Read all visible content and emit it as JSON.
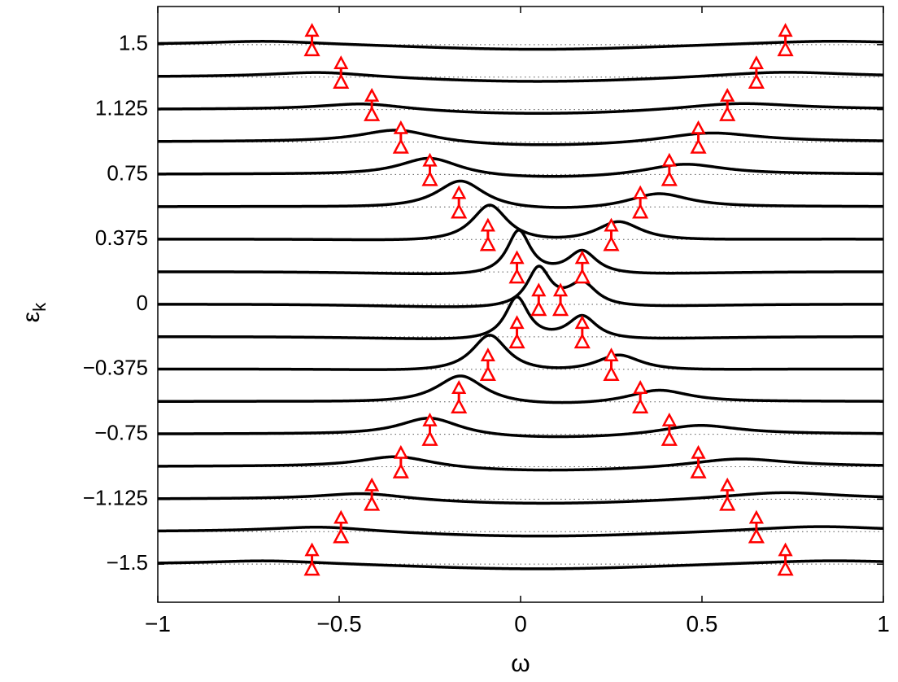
{
  "chart_data": {
    "type": "line",
    "xlabel": "ω",
    "ylabel": "ε",
    "ylabel_subscript": "k",
    "xlim": [
      -1,
      1
    ],
    "ylim": [
      -1.72,
      1.72
    ],
    "x_ticks": [
      -1,
      -0.5,
      0,
      0.5,
      1
    ],
    "x_tick_labels": [
      "−1",
      "−0.5",
      "0",
      "0.5",
      "1"
    ],
    "y_ticks": [
      -1.5,
      -1.125,
      -0.75,
      -0.375,
      0,
      0.375,
      0.75,
      1.125,
      1.5
    ],
    "y_tick_labels": [
      "−1.5",
      "−1.125",
      "−0.75",
      "−0.375",
      "0",
      "0.375",
      "0.75",
      "1.125",
      "1.5"
    ],
    "grid": "dotted horizontal line at each curve baseline",
    "curve_color": "#000000",
    "marker_color": "#ff0000",
    "curve_baselines": [
      1.5,
      1.3125,
      1.125,
      0.9375,
      0.75,
      0.5625,
      0.375,
      0.1875,
      0,
      -0.1875,
      -0.375,
      -0.5625,
      -0.75,
      -0.9375,
      -1.125,
      -1.3125,
      -1.5
    ],
    "marker_x_left": [
      -0.575,
      -0.495,
      -0.41,
      -0.33,
      -0.25,
      -0.17,
      -0.09,
      -0.01,
      0.05,
      -0.01,
      -0.09,
      -0.17,
      -0.25,
      -0.33,
      -0.41,
      -0.495,
      -0.575
    ],
    "marker_x_right": [
      0.73,
      0.65,
      0.57,
      0.49,
      0.41,
      0.33,
      0.25,
      0.17,
      0.11,
      0.17,
      0.25,
      0.33,
      0.41,
      0.49,
      0.57,
      0.65,
      0.73
    ],
    "peak_x_left": [
      -0.7,
      -0.55,
      -0.43,
      -0.34,
      -0.25,
      -0.165,
      -0.085,
      -0.005,
      0.05,
      -0.01,
      -0.085,
      -0.165,
      -0.25,
      -0.34,
      -0.43,
      -0.55,
      -0.7
    ],
    "peak_x_right": [
      0.85,
      0.72,
      0.6,
      0.52,
      0.45,
      0.38,
      0.27,
      0.17,
      0.17,
      0.17,
      0.27,
      0.38,
      0.49,
      0.6,
      0.72,
      0.82,
      0.85
    ],
    "peak_height_left": [
      0.02,
      0.03,
      0.04,
      0.08,
      0.11,
      0.17,
      0.22,
      0.26,
      0.23,
      0.25,
      0.22,
      0.17,
      0.11,
      0.07,
      0.04,
      0.03,
      0.02
    ],
    "peak_height_right": [
      0.02,
      0.03,
      0.04,
      0.06,
      0.07,
      0.09,
      0.12,
      0.14,
      0.14,
      0.14,
      0.1,
      0.08,
      0.06,
      0.05,
      0.04,
      0.03,
      0.02
    ]
  }
}
